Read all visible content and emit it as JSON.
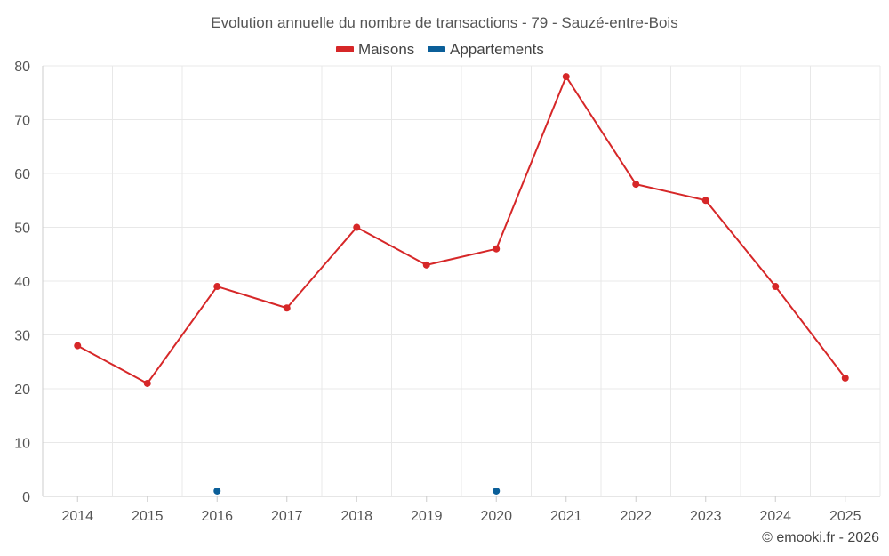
{
  "chart_data": {
    "type": "line",
    "title": "Evolution annuelle du nombre de transactions - 79 - Sauzé-entre-Bois",
    "categories": [
      "2014",
      "2015",
      "2016",
      "2017",
      "2018",
      "2019",
      "2020",
      "2021",
      "2022",
      "2023",
      "2024",
      "2025"
    ],
    "series": [
      {
        "name": "Maisons",
        "color": "#d62728",
        "values": [
          28,
          21,
          39,
          35,
          50,
          43,
          46,
          78,
          58,
          55,
          39,
          22
        ]
      },
      {
        "name": "Appartements",
        "color": "#0b5f99",
        "values": [
          null,
          null,
          1,
          null,
          null,
          null,
          1,
          null,
          null,
          null,
          null,
          null
        ]
      }
    ],
    "ylim": [
      0,
      80
    ],
    "yticks": [
      0,
      10,
      20,
      30,
      40,
      50,
      60,
      70,
      80
    ],
    "xlabel": "",
    "ylabel": "",
    "grid": true,
    "legend_position": "top-center"
  },
  "credit": "© emooki.fr - 2026"
}
